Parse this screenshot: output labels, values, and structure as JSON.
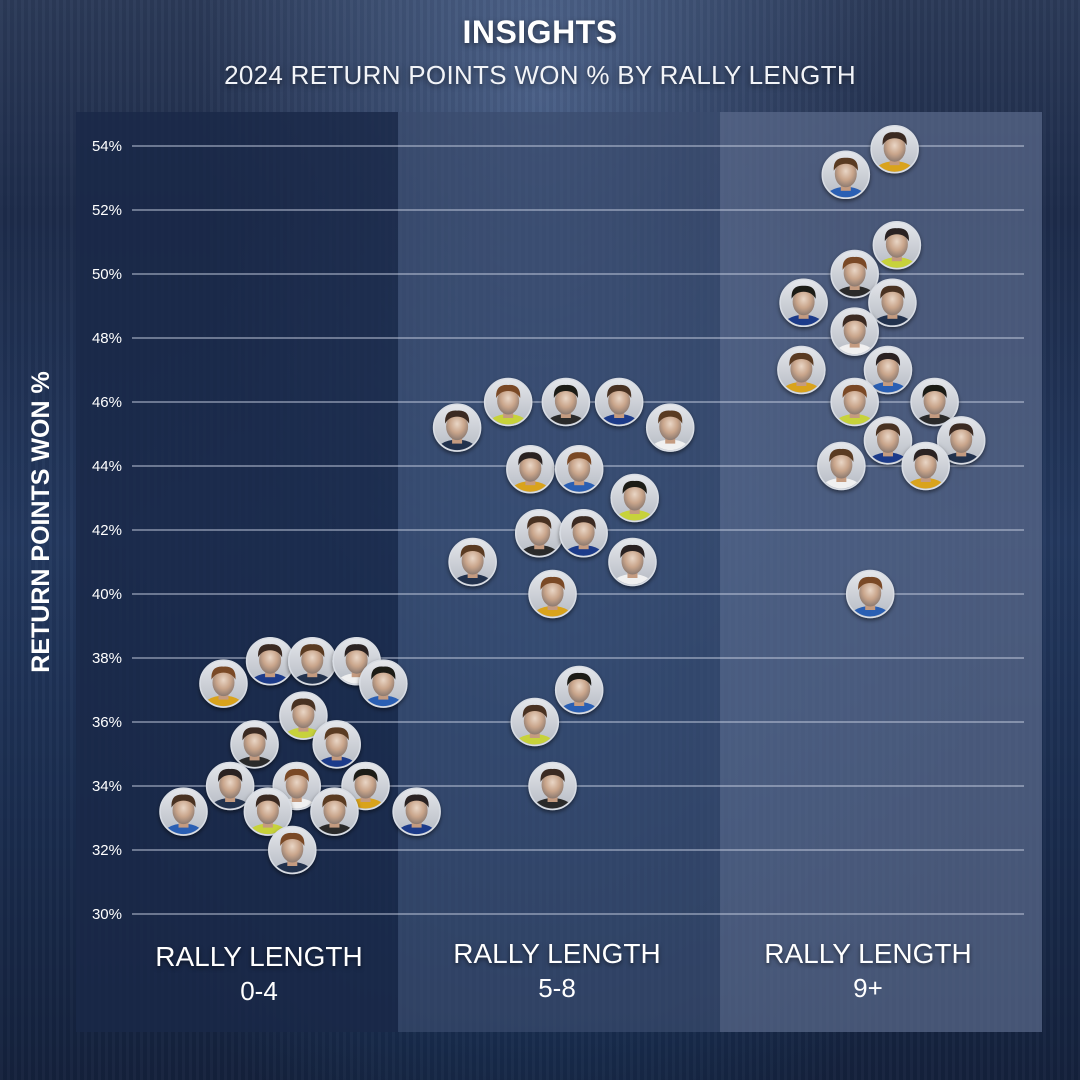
{
  "header": {
    "title": "INSIGHTS",
    "subtitle": "2024 RETURN POINTS WON % BY RALLY LENGTH"
  },
  "colors": {
    "panel_1": "#1a2848",
    "panel_2": "#3a4c6e",
    "panel_3": "#5a6a8a",
    "gridline": "#c9d2e3",
    "text": "#ffffff",
    "avatar_ring": "#d9dde4"
  },
  "chart_data": {
    "type": "scatter",
    "title": "2024 RETURN POINTS WON % BY RALLY LENGTH",
    "xlabel": "",
    "ylabel": "RETURN POINTS WON %",
    "ylim": [
      30,
      54
    ],
    "yticks": [
      "30%",
      "32%",
      "34%",
      "36%",
      "38%",
      "40%",
      "42%",
      "44%",
      "46%",
      "48%",
      "50%",
      "52%",
      "54%"
    ],
    "grid": true,
    "categories": [
      {
        "line1": "RALLY LENGTH",
        "line2": "0-4"
      },
      {
        "line1": "RALLY LENGTH",
        "line2": "5-8"
      },
      {
        "line1": "RALLY LENGTH",
        "line2": "9+"
      }
    ],
    "series": [
      {
        "name": "RALLY LENGTH 0-4",
        "points": [
          {
            "offset": 0.05,
            "y": 37.9
          },
          {
            "offset": 0.24,
            "y": 37.9
          },
          {
            "offset": 0.44,
            "y": 37.9
          },
          {
            "offset": -0.16,
            "y": 37.2
          },
          {
            "offset": 0.56,
            "y": 37.2
          },
          {
            "offset": 0.2,
            "y": 36.2
          },
          {
            "offset": -0.02,
            "y": 35.3
          },
          {
            "offset": 0.35,
            "y": 35.3
          },
          {
            "offset": -0.13,
            "y": 34.0
          },
          {
            "offset": 0.17,
            "y": 34.0
          },
          {
            "offset": 0.48,
            "y": 34.0
          },
          {
            "offset": -0.34,
            "y": 33.2
          },
          {
            "offset": 0.04,
            "y": 33.2
          },
          {
            "offset": 0.34,
            "y": 33.2
          },
          {
            "offset": 0.71,
            "y": 33.2
          },
          {
            "offset": 0.15,
            "y": 32.0
          }
        ]
      },
      {
        "name": "RALLY LENGTH 5-8",
        "points": [
          {
            "offset": -0.22,
            "y": 46.0
          },
          {
            "offset": 0.04,
            "y": 46.0
          },
          {
            "offset": 0.28,
            "y": 46.0
          },
          {
            "offset": -0.45,
            "y": 45.2
          },
          {
            "offset": 0.51,
            "y": 45.2
          },
          {
            "offset": -0.12,
            "y": 43.9
          },
          {
            "offset": 0.1,
            "y": 43.9
          },
          {
            "offset": 0.35,
            "y": 43.0
          },
          {
            "offset": -0.08,
            "y": 41.9
          },
          {
            "offset": 0.12,
            "y": 41.9
          },
          {
            "offset": -0.38,
            "y": 41.0
          },
          {
            "offset": 0.34,
            "y": 41.0
          },
          {
            "offset": -0.02,
            "y": 40.0
          },
          {
            "offset": 0.1,
            "y": 37.0
          },
          {
            "offset": -0.1,
            "y": 36.0
          },
          {
            "offset": -0.02,
            "y": 34.0
          }
        ]
      },
      {
        "name": "RALLY LENGTH 9+",
        "points": [
          {
            "offset": 0.12,
            "y": 53.9
          },
          {
            "offset": -0.1,
            "y": 53.1
          },
          {
            "offset": 0.13,
            "y": 50.9
          },
          {
            "offset": -0.06,
            "y": 50.0
          },
          {
            "offset": -0.29,
            "y": 49.1
          },
          {
            "offset": 0.11,
            "y": 49.1
          },
          {
            "offset": -0.06,
            "y": 48.2
          },
          {
            "offset": -0.3,
            "y": 47.0
          },
          {
            "offset": 0.09,
            "y": 47.0
          },
          {
            "offset": -0.06,
            "y": 46.0
          },
          {
            "offset": 0.3,
            "y": 46.0
          },
          {
            "offset": 0.09,
            "y": 44.8
          },
          {
            "offset": 0.42,
            "y": 44.8
          },
          {
            "offset": -0.12,
            "y": 44.0
          },
          {
            "offset": 0.26,
            "y": 44.0
          },
          {
            "offset": 0.01,
            "y": 40.0
          }
        ]
      }
    ]
  }
}
